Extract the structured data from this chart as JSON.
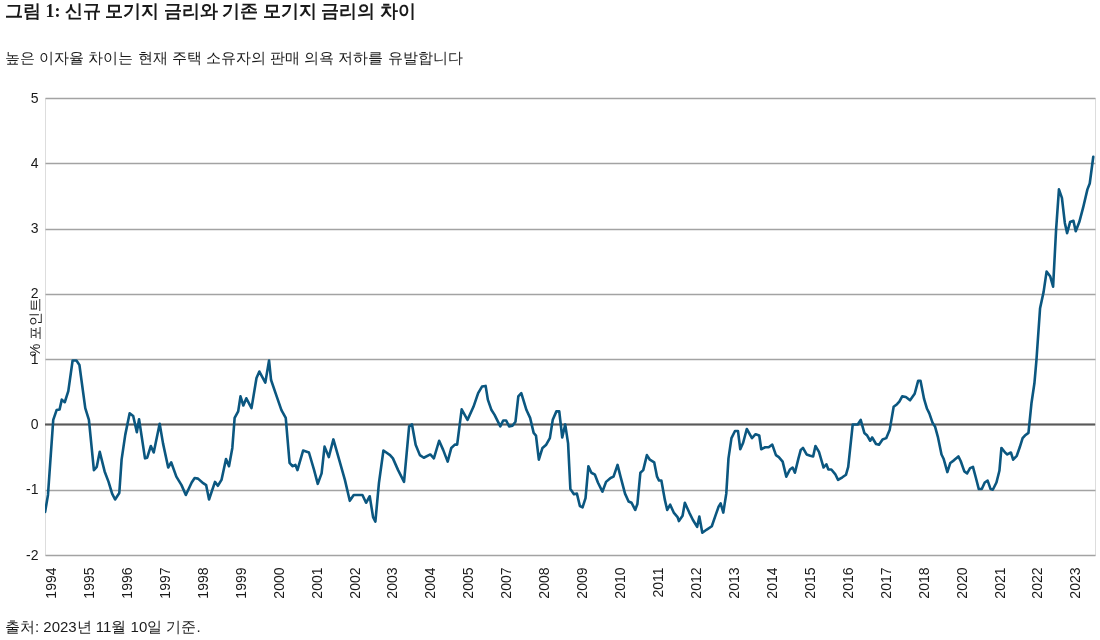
{
  "chart_data": {
    "type": "line",
    "title": "그림 1: 신규 모기지 금리와 기존 모기지 금리의 차이",
    "subtitle": "높은 이자율 차이는 현재 주택 소유자의 판매 의욕 저하를 유발합니다",
    "ylabel": "% 포인트",
    "annotations": [
      "출처: 2023년 11월 10일 기준."
    ],
    "x": [
      "1993-11-08",
      "1993-12-08",
      "1994-02-01",
      "1994-03-08",
      "1994-04-08",
      "1994-05-01",
      "1994-06-01",
      "1994-07-08",
      "1994-08-22",
      "1994-10-01",
      "1994-11-01",
      "1995-01-01",
      "1995-02-08",
      "1995-04-01",
      "1995-05-01",
      "1995-06-01",
      "1995-07-22",
      "1995-09-01",
      "1995-10-08",
      "1995-11-08",
      "1995-12-22",
      "1996-01-15",
      "1996-02-22",
      "1996-04-08",
      "1996-05-15",
      "1996-06-22",
      "1996-07-15",
      "1996-09-15",
      "1996-10-08",
      "1996-11-15",
      "1996-12-15",
      "1997-02-15",
      "1997-03-22",
      "1997-05-15",
      "1997-06-15",
      "1997-08-08",
      "1997-10-01",
      "1997-11-15",
      "1998-01-15",
      "1998-02-15",
      "1998-03-22",
      "1998-05-15",
      "1998-06-15",
      "1998-07-15",
      "1998-09-15",
      "1998-10-15",
      "1998-11-22",
      "1999-01-08",
      "1999-02-08",
      "1999-03-15",
      "1999-04-08",
      "1999-05-15",
      "1999-06-08",
      "1999-07-08",
      "1999-08-08",
      "1999-10-01",
      "1999-11-22",
      "1999-12-22",
      "2000-02-22",
      "2000-04-01",
      "2000-04-22",
      "2000-06-15",
      "2000-08-08",
      "2000-09-22",
      "2000-11-01",
      "2000-12-01",
      "2001-01-01",
      "2001-01-22",
      "2001-03-22",
      "2001-05-22",
      "2001-07-15",
      "2001-08-22",
      "2001-10-01",
      "2001-11-01",
      "2001-12-15",
      "2002-02-01",
      "2002-04-08",
      "2002-06-01",
      "2002-07-22",
      "2002-09-01",
      "2002-10-15",
      "2002-12-01",
      "2003-01-08",
      "2003-02-15",
      "2003-03-22",
      "2003-04-15",
      "2003-05-22",
      "2003-07-08",
      "2003-09-15",
      "2003-10-15",
      "2003-12-08",
      "2004-02-08",
      "2004-04-01",
      "2004-05-01",
      "2004-06-08",
      "2004-07-22",
      "2004-09-01",
      "2004-11-08",
      "2004-12-15",
      "2005-02-08",
      "2005-03-22",
      "2005-05-08",
      "2005-06-15",
      "2005-07-22",
      "2005-08-15",
      "2005-10-01",
      "2005-12-01",
      "2006-02-01",
      "2006-03-22",
      "2006-05-01",
      "2006-06-08",
      "2006-07-01",
      "2006-08-08",
      "2006-09-08",
      "2006-11-08",
      "2006-12-08",
      "2007-01-08",
      "2007-02-08",
      "2007-03-15",
      "2007-04-15",
      "2007-05-15",
      "2007-06-15",
      "2007-08-08",
      "2007-09-15",
      "2007-10-22",
      "2007-11-15",
      "2007-12-15",
      "2008-01-22",
      "2008-03-01",
      "2008-04-08",
      "2008-05-08",
      "2008-06-15",
      "2008-07-15",
      "2008-08-15",
      "2008-09-15",
      "2008-10-15",
      "2008-11-08",
      "2008-12-15",
      "2009-01-15",
      "2009-02-15",
      "2009-03-15",
      "2009-04-15",
      "2009-05-15",
      "2009-06-15",
      "2009-07-22",
      "2009-08-22",
      "2009-10-08",
      "2009-11-15",
      "2010-01-01",
      "2010-02-01",
      "2010-03-15",
      "2010-04-15",
      "2010-06-01",
      "2010-07-08",
      "2010-08-08",
      "2010-09-15",
      "2010-10-08",
      "2010-11-08",
      "2010-12-08",
      "2011-01-15",
      "2011-02-15",
      "2011-04-01",
      "2011-05-01",
      "2011-05-22",
      "2011-06-15",
      "2011-07-22",
      "2011-08-15",
      "2011-09-15",
      "2011-10-22",
      "2011-12-01",
      "2011-12-15",
      "2012-01-22",
      "2012-02-15",
      "2012-04-01",
      "2012-05-08",
      "2012-06-22",
      "2012-07-15",
      "2012-08-15",
      "2012-10-01",
      "2012-11-22",
      "2013-01-01",
      "2013-02-01",
      "2013-02-22",
      "2013-03-22",
      "2013-04-22",
      "2013-05-15",
      "2013-06-15",
      "2013-07-22",
      "2013-08-22",
      "2013-09-15",
      "2013-10-15",
      "2013-11-22",
      "2014-01-15",
      "2014-02-22",
      "2014-04-01",
      "2014-04-22",
      "2014-06-01",
      "2014-07-08",
      "2014-08-15",
      "2014-09-22",
      "2014-10-22",
      "2014-12-01",
      "2015-01-08",
      "2015-02-15",
      "2015-03-15",
      "2015-04-08",
      "2015-05-15",
      "2015-06-08",
      "2015-07-01",
      "2015-08-08",
      "2015-09-15",
      "2015-10-15",
      "2015-11-08",
      "2015-12-15",
      "2016-02-01",
      "2016-03-01",
      "2016-03-22",
      "2016-04-22",
      "2016-06-01",
      "2016-07-01",
      "2016-08-15",
      "2016-09-22",
      "2016-10-15",
      "2016-12-01",
      "2017-01-22",
      "2017-02-22",
      "2017-04-01",
      "2017-05-01",
      "2017-06-01",
      "2017-06-22",
      "2017-08-01",
      "2017-09-01",
      "2017-10-08",
      "2017-11-15",
      "2017-12-22",
      "2018-02-01",
      "2018-03-08",
      "2018-04-01",
      "2018-05-01",
      "2018-06-08",
      "2018-07-22",
      "2018-09-08",
      "2018-10-15",
      "2018-11-08",
      "2018-12-15",
      "2019-01-15",
      "2019-02-08",
      "2019-03-15",
      "2019-04-08",
      "2019-05-08",
      "2019-06-15",
      "2019-07-08",
      "2019-08-15",
      "2019-09-15",
      "2019-10-22",
      "2019-12-08",
      "2020-01-01",
      "2020-02-08",
      "2020-03-08",
      "2020-04-08",
      "2020-05-08",
      "2020-06-08",
      "2020-07-08",
      "2020-08-08",
      "2020-09-08",
      "2020-10-08",
      "2020-11-08",
      "2020-12-01",
      "2021-01-08",
      "2021-02-08",
      "2021-03-01",
      "2021-04-08",
      "2021-05-01",
      "2021-06-08",
      "2021-07-01",
      "2021-08-08",
      "2021-09-08",
      "2021-10-08",
      "2021-11-01",
      "2021-12-08",
      "2022-01-08",
      "2022-02-08",
      "2022-03-01",
      "2022-04-08",
      "2022-05-15",
      "2022-06-15",
      "2022-07-22",
      "2022-08-22",
      "2022-09-22",
      "2022-10-22",
      "2022-11-22",
      "2022-12-22",
      "2023-01-15",
      "2023-02-15",
      "2023-03-22",
      "2023-04-15",
      "2023-05-22",
      "2023-07-01",
      "2023-08-15",
      "2023-09-08",
      "2023-10-15"
    ],
    "series": [
      {
        "color": "#0b5780",
        "values": [
          -1.34,
          -1.08,
          0.07,
          0.22,
          0.23,
          0.38,
          0.34,
          0.51,
          0.98,
          0.98,
          0.91,
          0.25,
          0.07,
          -0.7,
          -0.65,
          -0.42,
          -0.72,
          -0.88,
          -1.06,
          -1.15,
          -1.05,
          -0.54,
          -0.16,
          0.17,
          0.13,
          -0.12,
          0.08,
          -0.52,
          -0.51,
          -0.33,
          -0.43,
          0.01,
          -0.29,
          -0.66,
          -0.58,
          -0.8,
          -0.93,
          -1.08,
          -0.89,
          -0.82,
          -0.83,
          -0.9,
          -0.93,
          -1.15,
          -0.88,
          -0.94,
          -0.85,
          -0.53,
          -0.64,
          -0.36,
          0.1,
          0.2,
          0.43,
          0.29,
          0.4,
          0.25,
          0.71,
          0.81,
          0.64,
          0.98,
          0.68,
          0.45,
          0.22,
          0.1,
          -0.59,
          -0.64,
          -0.62,
          -0.7,
          -0.4,
          -0.43,
          -0.7,
          -0.91,
          -0.75,
          -0.34,
          -0.5,
          -0.23,
          -0.57,
          -0.85,
          -1.17,
          -1.08,
          -1.08,
          -1.08,
          -1.2,
          -1.1,
          -1.42,
          -1.49,
          -0.9,
          -0.4,
          -0.47,
          -0.52,
          -0.7,
          -0.88,
          -0.03,
          0.0,
          -0.31,
          -0.47,
          -0.51,
          -0.46,
          -0.52,
          -0.25,
          -0.39,
          -0.57,
          -0.36,
          -0.31,
          -0.31,
          0.23,
          0.07,
          0.27,
          0.48,
          0.58,
          0.59,
          0.38,
          0.22,
          0.15,
          -0.03,
          0.06,
          0.06,
          -0.03,
          -0.02,
          0.04,
          0.43,
          0.48,
          0.22,
          0.1,
          -0.13,
          -0.17,
          -0.54,
          -0.36,
          -0.31,
          -0.21,
          0.07,
          0.2,
          0.2,
          -0.2,
          0.0,
          -0.29,
          -0.99,
          -1.07,
          -1.06,
          -1.25,
          -1.27,
          -1.13,
          -0.64,
          -0.74,
          -0.77,
          -0.89,
          -1.03,
          -0.88,
          -0.82,
          -0.8,
          -0.62,
          -0.8,
          -1.06,
          -1.18,
          -1.2,
          -1.31,
          -1.22,
          -0.74,
          -0.7,
          -0.47,
          -0.54,
          -0.58,
          -0.8,
          -0.86,
          -0.86,
          -1.16,
          -1.31,
          -1.23,
          -1.35,
          -1.42,
          -1.48,
          -1.4,
          -1.2,
          -1.35,
          -1.46,
          -1.57,
          -1.41,
          -1.66,
          -1.61,
          -1.56,
          -1.39,
          -1.26,
          -1.21,
          -1.35,
          -1.06,
          -0.52,
          -0.21,
          -0.1,
          -0.1,
          -0.38,
          -0.28,
          -0.07,
          -0.21,
          -0.15,
          -0.17,
          -0.38,
          -0.35,
          -0.35,
          -0.31,
          -0.47,
          -0.5,
          -0.57,
          -0.8,
          -0.69,
          -0.66,
          -0.74,
          -0.52,
          -0.39,
          -0.36,
          -0.46,
          -0.48,
          -0.49,
          -0.33,
          -0.42,
          -0.66,
          -0.61,
          -0.69,
          -0.69,
          -0.76,
          -0.85,
          -0.81,
          -0.77,
          -0.65,
          0.0,
          0.0,
          0.07,
          -0.13,
          -0.17,
          -0.25,
          -0.2,
          -0.3,
          -0.31,
          -0.23,
          -0.21,
          -0.08,
          0.27,
          0.31,
          0.35,
          0.43,
          0.42,
          0.37,
          0.47,
          0.67,
          0.67,
          0.39,
          0.24,
          0.17,
          0.02,
          -0.03,
          -0.19,
          -0.46,
          -0.53,
          -0.73,
          -0.59,
          -0.55,
          -0.49,
          -0.56,
          -0.72,
          -0.75,
          -0.67,
          -0.65,
          -0.82,
          -0.99,
          -0.99,
          -0.89,
          -0.86,
          -0.99,
          -1.0,
          -0.89,
          -0.71,
          -0.36,
          -0.43,
          -0.46,
          -0.43,
          -0.54,
          -0.48,
          -0.35,
          -0.21,
          -0.17,
          -0.13,
          0.32,
          0.63,
          0.98,
          1.78,
          2.03,
          2.34,
          2.27,
          2.11,
          2.98,
          3.6,
          3.47,
          3.09,
          2.93,
          3.1,
          3.12,
          2.96,
          3.1,
          3.32,
          3.6,
          3.69,
          4.1
        ]
      }
    ],
    "xlim": [
      "1993-11-07",
      "2023-11-02"
    ],
    "xticks": [
      {
        "value": "1994-01-15",
        "label": "1994"
      },
      {
        "value": "1995-02-15",
        "label": "1995"
      },
      {
        "value": "1996-03-15",
        "label": "1996"
      },
      {
        "value": "1997-04-15",
        "label": "1997"
      },
      {
        "value": "1998-05-15",
        "label": "1998"
      },
      {
        "value": "1999-06-15",
        "label": "1999"
      },
      {
        "value": "2000-07-15",
        "label": "2000"
      },
      {
        "value": "2001-08-15",
        "label": "2001"
      },
      {
        "value": "2002-09-15",
        "label": "2002"
      },
      {
        "value": "2003-10-15",
        "label": "2003"
      },
      {
        "value": "2004-11-15",
        "label": "2004"
      },
      {
        "value": "2005-12-15",
        "label": "2005"
      },
      {
        "value": "2007-01-15",
        "label": "2007"
      },
      {
        "value": "2008-02-15",
        "label": "2008"
      },
      {
        "value": "2009-03-15",
        "label": "2009"
      },
      {
        "value": "2010-04-15",
        "label": "2010"
      },
      {
        "value": "2011-05-15",
        "label": "2011"
      },
      {
        "value": "2012-06-15",
        "label": "2012"
      },
      {
        "value": "2013-07-15",
        "label": "2013"
      },
      {
        "value": "2014-08-15",
        "label": "2014"
      },
      {
        "value": "2015-09-15",
        "label": "2015"
      },
      {
        "value": "2016-10-15",
        "label": "2016"
      },
      {
        "value": "2017-11-15",
        "label": "2017"
      },
      {
        "value": "2018-12-15",
        "label": "2018"
      },
      {
        "value": "2020-01-15",
        "label": "2020"
      },
      {
        "value": "2021-02-15",
        "label": "2021"
      },
      {
        "value": "2022-03-15",
        "label": "2022"
      },
      {
        "value": "2023-04-15",
        "label": "2023"
      }
    ],
    "ylim": [
      -2,
      5
    ],
    "yticks": [
      -2,
      -1,
      0,
      1,
      2,
      3,
      4,
      5
    ],
    "grid": "y",
    "ref_lines": [
      {
        "axis": "y",
        "value": 0,
        "color": "#595959"
      }
    ],
    "line_style": "solid"
  }
}
